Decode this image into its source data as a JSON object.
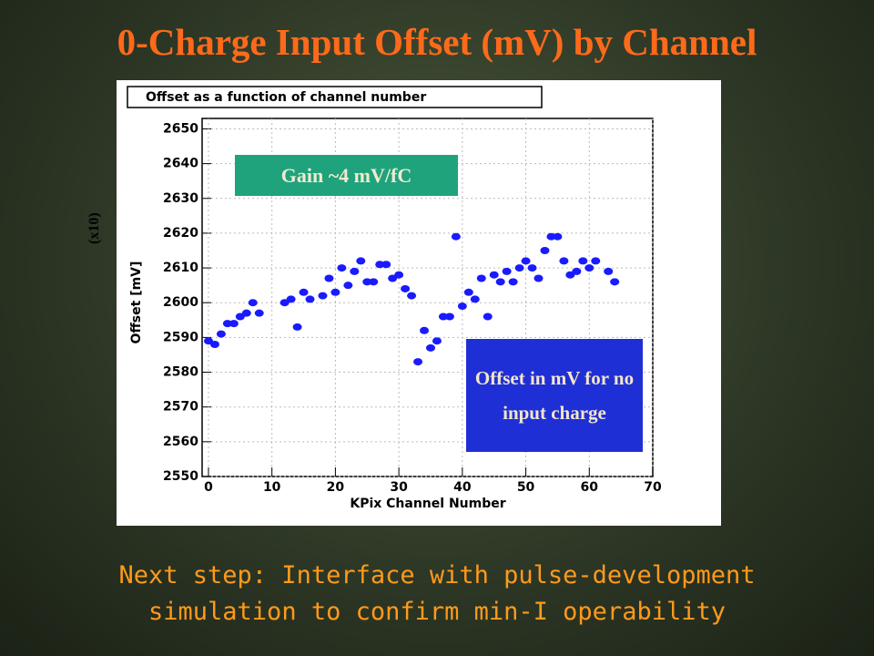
{
  "slide_title": "0-Charge Input Offset (mV) by Channel",
  "footer": "Next step: Interface with pulse-development simulation to confirm min-I operability",
  "chart_data": {
    "type": "scatter",
    "title": "Offset as a function of channel number",
    "x_label": "KPix Channel Number",
    "y_label": "Offset [mV]",
    "y_scale_note": "(x10)",
    "annotations": [
      "Gain ~4 mV/fC",
      "Offset in mV for no input charge"
    ],
    "color": "#1a1aff",
    "xlim": [
      -1,
      70
    ],
    "ylim": [
      2550,
      2653
    ],
    "xticks": [
      0,
      10,
      20,
      30,
      40,
      50,
      60,
      70
    ],
    "yticks": [
      2550,
      2560,
      2570,
      2580,
      2590,
      2600,
      2610,
      2620,
      2630,
      2640,
      2650
    ],
    "grid": true,
    "x": [
      0,
      1,
      2,
      3,
      4,
      5,
      6,
      7,
      8,
      12,
      13,
      14,
      15,
      16,
      18,
      19,
      20,
      21,
      22,
      23,
      24,
      25,
      26,
      27,
      28,
      29,
      30,
      31,
      32,
      33,
      34,
      35,
      36,
      37,
      38,
      39,
      40,
      41,
      42,
      43,
      44,
      45,
      46,
      47,
      48,
      49,
      50,
      51,
      52,
      53,
      54,
      55,
      56,
      57,
      58,
      59,
      60,
      61,
      63,
      64
    ],
    "y": [
      2589,
      2588,
      2591,
      2594,
      2594,
      2596,
      2597,
      2600,
      2597,
      2600,
      2601,
      2593,
      2603,
      2601,
      2602,
      2607,
      2603,
      2610,
      2605,
      2609,
      2612,
      2606,
      2606,
      2611,
      2611,
      2607,
      2608,
      2604,
      2602,
      2583,
      2592,
      2587,
      2589,
      2596,
      2596,
      2619,
      2599,
      2603,
      2601,
      2607,
      2596,
      2608,
      2606,
      2609,
      2606,
      2610,
      2612,
      2610,
      2607,
      2615,
      2619,
      2619,
      2612,
      2608,
      2609,
      2612,
      2610,
      2612,
      2609,
      2606
    ]
  }
}
